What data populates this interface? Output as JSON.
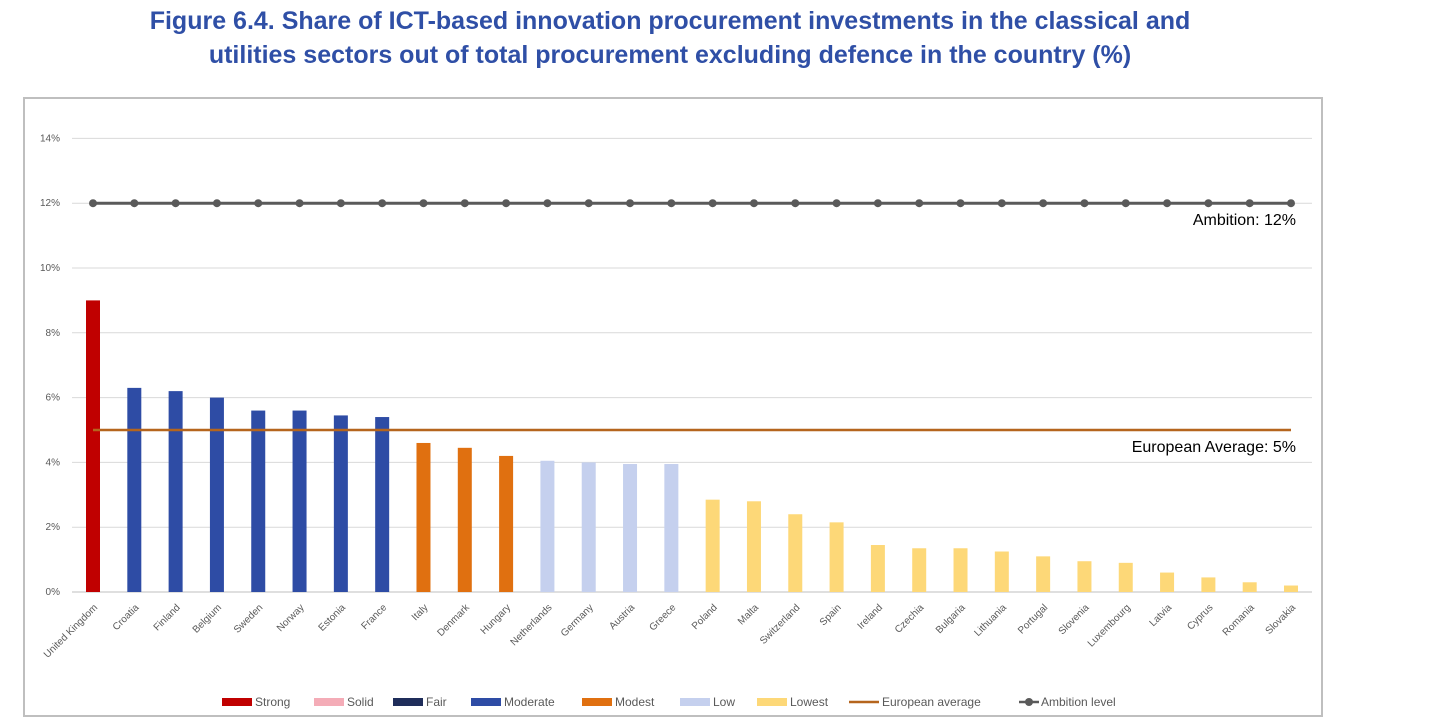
{
  "figure": {
    "title_line1": "Figure 6.4. Share of ICT-based innovation procurement investments in the classical and",
    "title_line2": "utilities sectors out of total procurement excluding defence in the country (%)"
  },
  "chart_data": {
    "type": "bar",
    "ylim": [
      0,
      14
    ],
    "yticks": [
      "0%",
      "2%",
      "4%",
      "6%",
      "8%",
      "10%",
      "12%",
      "14%"
    ],
    "grid": true,
    "legend_position": "bottom",
    "categories": [
      "United Kingdom",
      "Croatia",
      "Finland",
      "Belgium",
      "Sweden",
      "Norway",
      "Estonia",
      "France",
      "Italy",
      "Denmark",
      "Hungary",
      "Netherlands",
      "Germany",
      "Austria",
      "Greece",
      "Poland",
      "Malta",
      "Switzerland",
      "Spain",
      "Ireland",
      "Czechia",
      "Bulgaria",
      "Lithuania",
      "Portugal",
      "Slovenia",
      "Luxembourg",
      "Latvia",
      "Cyprus",
      "Romania",
      "Slovakia"
    ],
    "values": [
      9.0,
      6.3,
      6.2,
      6.0,
      5.6,
      5.6,
      5.45,
      5.4,
      4.6,
      4.45,
      4.2,
      4.05,
      4.0,
      3.95,
      3.95,
      2.85,
      2.8,
      2.4,
      2.15,
      1.45,
      1.35,
      1.35,
      1.25,
      1.1,
      0.95,
      0.9,
      0.6,
      0.45,
      0.3,
      0.2
    ],
    "groups": [
      "Strong",
      "Moderate",
      "Moderate",
      "Moderate",
      "Moderate",
      "Moderate",
      "Moderate",
      "Moderate",
      "Modest",
      "Modest",
      "Modest",
      "Low",
      "Low",
      "Low",
      "Low",
      "Lowest",
      "Lowest",
      "Lowest",
      "Lowest",
      "Lowest",
      "Lowest",
      "Lowest",
      "Lowest",
      "Lowest",
      "Lowest",
      "Lowest",
      "Lowest",
      "Lowest",
      "Lowest",
      "Lowest"
    ],
    "group_colors": {
      "Strong": "#c00000",
      "Solid": "#f4acb7",
      "Fair": "#1f2d5a",
      "Moderate": "#2e4ca5",
      "Modest": "#e07010",
      "Low": "#c5d0ee",
      "Lowest": "#fdd878"
    },
    "lines": [
      {
        "name": "European average",
        "value": 5,
        "color": "#b5651d",
        "annotation": "European Average: 5%"
      },
      {
        "name": "Ambition level",
        "value": 12,
        "color": "#5a5a5a",
        "annotation": "Ambition: 12%"
      }
    ],
    "legend": [
      "Strong",
      "Solid",
      "Fair",
      "Moderate",
      "Modest",
      "Low",
      "Lowest",
      "European average",
      "Ambition level"
    ]
  }
}
